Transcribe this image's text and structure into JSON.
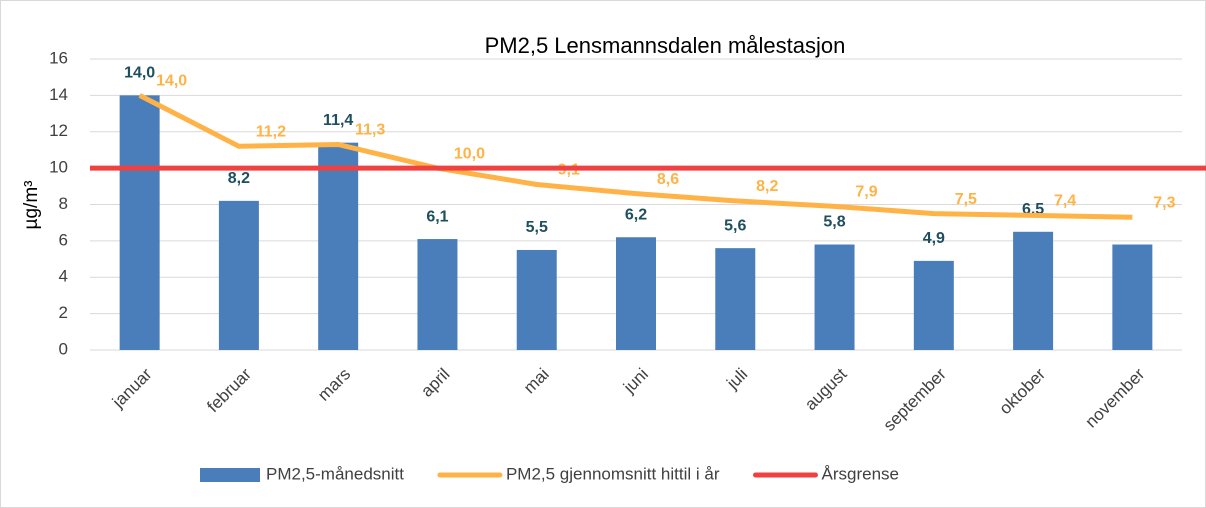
{
  "chart_data": {
    "type": "bar",
    "title": "PM2,5 Lensmannsdalen målestasjon",
    "y_label": "µg/m³",
    "categories": [
      "januar",
      "februar",
      "mars",
      "april",
      "mai",
      "juni",
      "juli",
      "august",
      "september",
      "oktober",
      "november"
    ],
    "series": [
      {
        "name": "PM2,5-månedsnitt",
        "type": "bar",
        "color": "#4a7ebb",
        "values": [
          14.0,
          8.2,
          11.4,
          6.1,
          5.5,
          6.2,
          5.6,
          5.8,
          4.9,
          6.5,
          5.8
        ],
        "value_labels": [
          "14,0",
          "8,2",
          "11,4",
          "6,1",
          "5,5",
          "6,2",
          "5,6",
          "5,8",
          "4,9",
          "6,5",
          null
        ]
      },
      {
        "name": "PM2,5 gjennomsnitt hittil i år",
        "type": "line",
        "color": "#ffb347",
        "values": [
          14.0,
          11.2,
          11.3,
          10.0,
          9.1,
          8.6,
          8.2,
          7.9,
          7.5,
          7.4,
          7.3
        ],
        "value_labels": [
          "14,0",
          "11,2",
          "11,3",
          "10,0",
          "9,1",
          "8,6",
          "8,2",
          "7,9",
          "7,5",
          "7,4",
          "7,3"
        ]
      },
      {
        "name": "Årsgrense",
        "type": "hline",
        "color": "#f04040",
        "value": 10
      }
    ],
    "ylim": [
      0,
      16
    ],
    "yticks": [
      0,
      2,
      4,
      6,
      8,
      10,
      12,
      14,
      16
    ],
    "grid": true,
    "legend": "bottom"
  }
}
